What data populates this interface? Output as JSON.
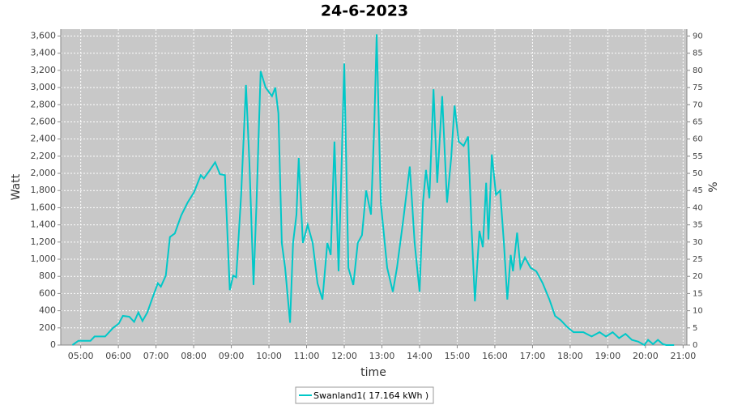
{
  "chart_data": {
    "type": "line",
    "title": "24-6-2023",
    "xlabel": "time",
    "ylabel": "Watt",
    "y2label": "%",
    "xlim": [
      4.47,
      21.1
    ],
    "ylim": [
      0,
      3680
    ],
    "y2lim": [
      0,
      92
    ],
    "grid": true,
    "legend": "bottom",
    "xticks": [
      {
        "value": 5,
        "label": "05:00"
      },
      {
        "value": 6,
        "label": "06:00"
      },
      {
        "value": 7,
        "label": "07:00"
      },
      {
        "value": 8,
        "label": "08:00"
      },
      {
        "value": 9,
        "label": "09:00"
      },
      {
        "value": 10,
        "label": "10:00"
      },
      {
        "value": 11,
        "label": "11:00"
      },
      {
        "value": 12,
        "label": "12:00"
      },
      {
        "value": 13,
        "label": "13:00"
      },
      {
        "value": 14,
        "label": "14:00"
      },
      {
        "value": 15,
        "label": "15:00"
      },
      {
        "value": 16,
        "label": "16:00"
      },
      {
        "value": 17,
        "label": "17:00"
      },
      {
        "value": 18,
        "label": "18:00"
      },
      {
        "value": 19,
        "label": "19:00"
      },
      {
        "value": 20,
        "label": "20:00"
      },
      {
        "value": 21,
        "label": "21:00"
      }
    ],
    "yticks": [
      0,
      200,
      400,
      600,
      800,
      {
        "value": 1000,
        "label": "1,000"
      },
      {
        "value": 1200,
        "label": "1,200"
      },
      {
        "value": 1400,
        "label": "1,400"
      },
      {
        "value": 1600,
        "label": "1,600"
      },
      {
        "value": 1800,
        "label": "1,800"
      },
      {
        "value": 2000,
        "label": "2,000"
      },
      {
        "value": 2200,
        "label": "2,200"
      },
      {
        "value": 2400,
        "label": "2,400"
      },
      {
        "value": 2600,
        "label": "2,600"
      },
      {
        "value": 2800,
        "label": "2,800"
      },
      {
        "value": 3000,
        "label": "3,000"
      },
      {
        "value": 3200,
        "label": "3,200"
      },
      {
        "value": 3400,
        "label": "3,400"
      },
      {
        "value": 3600,
        "label": "3,600"
      }
    ],
    "y2ticks": [
      0,
      5,
      10,
      15,
      20,
      25,
      30,
      35,
      40,
      45,
      50,
      55,
      60,
      65,
      70,
      75,
      80,
      85,
      90
    ],
    "x": [
      4.78,
      4.94,
      5.26,
      5.37,
      5.65,
      5.86,
      6.01,
      6.12,
      6.29,
      6.42,
      6.53,
      6.64,
      6.77,
      6.89,
      7.05,
      7.13,
      7.26,
      7.37,
      7.5,
      7.67,
      7.84,
      8.01,
      8.19,
      8.27,
      8.4,
      8.57,
      8.7,
      8.83,
      8.96,
      9.05,
      9.13,
      9.26,
      9.39,
      9.48,
      9.59,
      9.67,
      9.78,
      9.91,
      10.08,
      10.17,
      10.25,
      10.34,
      10.43,
      10.56,
      10.64,
      10.73,
      10.79,
      10.9,
      11.03,
      11.16,
      11.29,
      11.42,
      11.55,
      11.64,
      11.74,
      11.85,
      11.93,
      12.0,
      12.11,
      12.24,
      12.36,
      12.47,
      12.58,
      12.71,
      12.8,
      12.86,
      12.97,
      13.14,
      13.29,
      13.4,
      13.57,
      13.74,
      13.87,
      14.0,
      14.09,
      14.17,
      14.26,
      14.37,
      14.47,
      14.6,
      14.73,
      14.84,
      14.93,
      15.04,
      15.17,
      15.29,
      15.38,
      15.47,
      15.59,
      15.68,
      15.77,
      15.83,
      15.92,
      16.03,
      16.14,
      16.24,
      16.33,
      16.42,
      16.48,
      16.59,
      16.68,
      16.8,
      16.95,
      17.1,
      17.27,
      17.45,
      17.6,
      17.75,
      17.92,
      18.09,
      18.35,
      18.57,
      18.78,
      18.95,
      19.13,
      19.3,
      19.47,
      19.64,
      19.81,
      19.97,
      20.07,
      20.2,
      20.33,
      20.46,
      20.55,
      20.76
    ],
    "series": [
      {
        "name": "Swanland1( 17.164 kWh )",
        "color": "#00c8c8",
        "values": [
          0,
          50,
          50,
          100,
          100,
          200,
          250,
          340,
          330,
          270,
          380,
          280,
          380,
          530,
          720,
          680,
          810,
          1260,
          1300,
          1510,
          1660,
          1780,
          1980,
          1940,
          2020,
          2130,
          1990,
          1980,
          640,
          810,
          790,
          1750,
          3030,
          2130,
          700,
          1660,
          3190,
          3000,
          2900,
          3000,
          2700,
          1190,
          900,
          260,
          1190,
          1520,
          2180,
          1190,
          1400,
          1190,
          720,
          530,
          1190,
          1050,
          2370,
          860,
          2130,
          3280,
          900,
          700,
          1190,
          1280,
          1800,
          1520,
          2600,
          3620,
          1660,
          900,
          620,
          900,
          1470,
          2080,
          1190,
          620,
          1660,
          2040,
          1710,
          2980,
          1890,
          2900,
          1660,
          2180,
          2790,
          2370,
          2320,
          2430,
          1380,
          510,
          1330,
          1140,
          1890,
          1230,
          2220,
          1750,
          1800,
          1190,
          530,
          1050,
          860,
          1310,
          900,
          1020,
          900,
          860,
          720,
          530,
          340,
          290,
          210,
          150,
          150,
          100,
          150,
          100,
          150,
          80,
          130,
          60,
          40,
          0,
          60,
          10,
          60,
          10,
          0,
          0
        ]
      }
    ]
  }
}
